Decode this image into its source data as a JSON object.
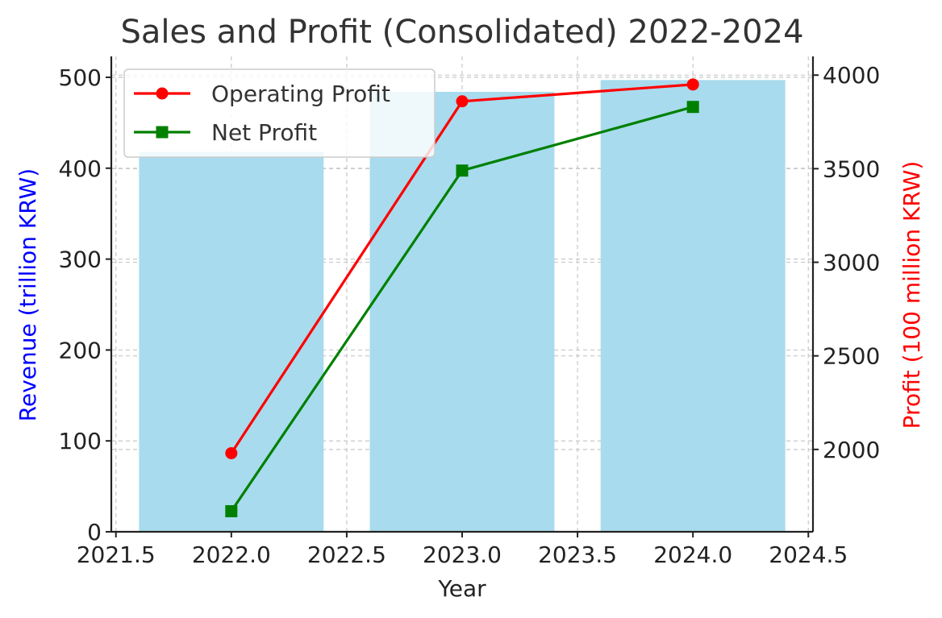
{
  "chart_data": {
    "type": "bar+line",
    "title": "Sales and Profit (Consolidated) 2022-2024",
    "xlabel": "Year",
    "ylabel_left": "Revenue (trillion KRW)",
    "ylabel_right": "Profit (100 million KRW)",
    "x_ticks": [
      "2021.5",
      "2022.0",
      "2022.5",
      "2023.0",
      "2023.5",
      "2024.0",
      "2024.5"
    ],
    "x_tick_values": [
      2021.5,
      2022.0,
      2022.5,
      2023.0,
      2023.5,
      2024.0,
      2024.5
    ],
    "xlim": [
      2021.48,
      2024.52
    ],
    "y_left_ticks": [
      "0",
      "100",
      "200",
      "300",
      "400",
      "500"
    ],
    "y_left_tick_values": [
      0,
      100,
      200,
      300,
      400,
      500
    ],
    "ylim_left": [
      0,
      523
    ],
    "y_right_ticks": [
      "2000",
      "2500",
      "3000",
      "3500",
      "4000"
    ],
    "y_right_tick_values": [
      2000,
      2500,
      3000,
      3500,
      4000
    ],
    "ylim_right": [
      1560,
      4100
    ],
    "grid": true,
    "legend_position": "top-left",
    "bars": {
      "x": [
        2022,
        2023,
        2024
      ],
      "values": [
        418,
        484,
        497
      ],
      "width": 0.8,
      "color": "#a8dbed"
    },
    "series": [
      {
        "name": "Operating Profit",
        "axis": "right",
        "marker": "circle",
        "color": "#ff0000",
        "x": [
          2022,
          2023,
          2024
        ],
        "values": [
          1980,
          3860,
          3950
        ]
      },
      {
        "name": "Net Profit",
        "axis": "right",
        "marker": "square",
        "color": "#008000",
        "x": [
          2022,
          2023,
          2024
        ],
        "values": [
          1670,
          3490,
          3830
        ]
      }
    ],
    "colors": {
      "left_label": "#0000ff",
      "right_label": "#ff0000",
      "grid": "#cccccc",
      "axis": "#222222"
    }
  }
}
